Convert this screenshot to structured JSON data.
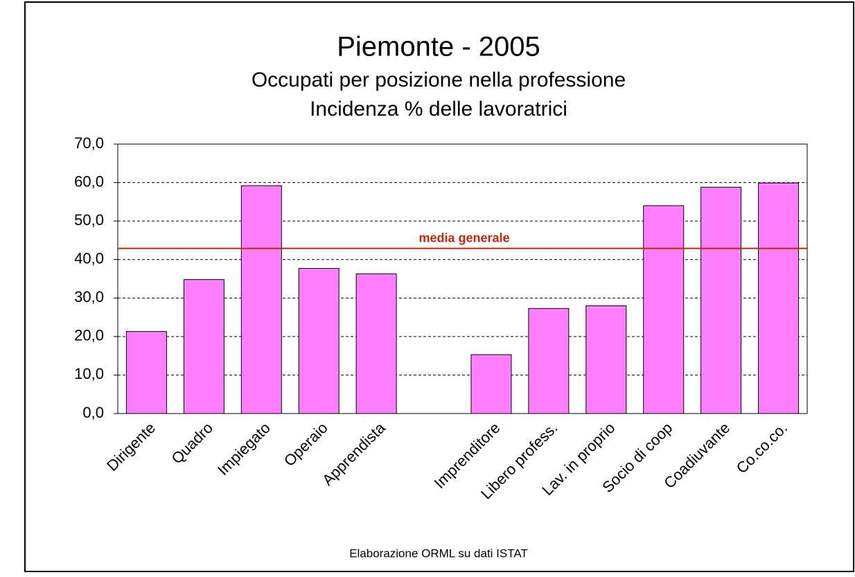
{
  "chart_data": {
    "type": "bar",
    "title": "Piemonte - 2005",
    "subtitle": [
      "Occupati per posizione nella professione",
      "Incidenza % delle lavoratrici"
    ],
    "categories": [
      "Dirigente",
      "Quadro",
      "Impiegato",
      "Operaio",
      "Apprendista",
      null,
      "Imprenditore",
      "Libero profess.",
      "Lav. in proprio",
      "Socio di coop",
      "Coadiuvante",
      "Co.co.co."
    ],
    "values": [
      21.3,
      34.8,
      59.2,
      37.7,
      36.3,
      null,
      15.3,
      27.3,
      28.0,
      54.0,
      58.8,
      59.9
    ],
    "color": "#ff80ff",
    "ylim": [
      0,
      70
    ],
    "yticks": [
      {
        "value": 0,
        "label": "0,0"
      },
      {
        "value": 10,
        "label": "10,0"
      },
      {
        "value": 20,
        "label": "20,0"
      },
      {
        "value": 30,
        "label": "30,0"
      },
      {
        "value": 40,
        "label": "40,0"
      },
      {
        "value": 50,
        "label": "50,0"
      },
      {
        "value": 60,
        "label": "60,0"
      },
      {
        "value": 70,
        "label": "70,0"
      }
    ],
    "grid": true,
    "reference_line": {
      "label": "media generale",
      "value": 42.9,
      "color": "#c0280e"
    },
    "note": "Elaborazione ORML su dati ISTAT"
  }
}
